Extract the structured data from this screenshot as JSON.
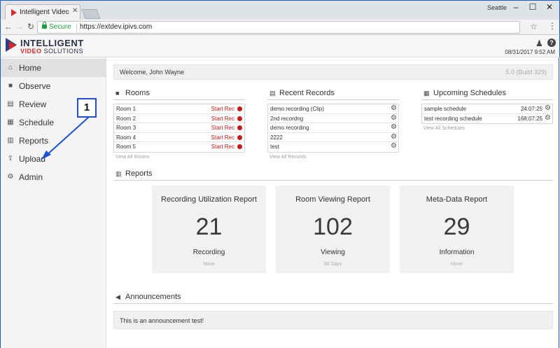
{
  "browser": {
    "tab_title": "Intelligent Video Solution",
    "user_label": "Seattle",
    "secure_label": "Secure",
    "url": "https://extdev.ipivs.com"
  },
  "header": {
    "logo_line1": "INTELLIGENT",
    "logo_line2_a": "VIDEO",
    "logo_line2_b": "SOLUTIONS",
    "datetime": "08/31/2017 9:52 AM"
  },
  "sidebar": {
    "items": [
      {
        "label": "Home",
        "icon": "home-icon"
      },
      {
        "label": "Observe",
        "icon": "video-camera-icon"
      },
      {
        "label": "Review",
        "icon": "film-icon"
      },
      {
        "label": "Schedule",
        "icon": "calendar-icon"
      },
      {
        "label": "Reports",
        "icon": "bar-chart-icon"
      },
      {
        "label": "Upload",
        "icon": "upload-icon"
      },
      {
        "label": "Admin",
        "icon": "gear-icon"
      }
    ]
  },
  "callout": {
    "number": "1"
  },
  "welcome": {
    "text": "Welcome, John Wayne",
    "build": "5.0 (Build 329)"
  },
  "rooms": {
    "title": "Rooms",
    "start_label": "Start Rec",
    "items": [
      "Room 1",
      "Room 2",
      "Room 3",
      "Room 4",
      "Room 5"
    ],
    "view_all": "View All Rooms"
  },
  "records": {
    "title": "Recent Records",
    "items": [
      "demo recording (Clip)",
      "2nd recordng",
      "demo recording",
      "2222",
      "test"
    ],
    "view_all": "View All Records"
  },
  "schedules": {
    "title": "Upcoming Schedules",
    "items": [
      {
        "name": "sample schedule",
        "time": "24:07:25"
      },
      {
        "name": "test recording schedule",
        "time": "168:07:25"
      }
    ],
    "view_all": "View All Schedules"
  },
  "reports": {
    "title": "Reports",
    "cards": [
      {
        "title": "Recording Utilization Report",
        "value": "21",
        "label": "Recording",
        "sub": "None"
      },
      {
        "title": "Room Viewing Report",
        "value": "102",
        "label": "Viewing",
        "sub": "30 Days"
      },
      {
        "title": "Meta-Data Report",
        "value": "29",
        "label": "Information",
        "sub": "None"
      }
    ]
  },
  "announcements": {
    "title": "Announcements",
    "text": "This is an announcement test!"
  }
}
